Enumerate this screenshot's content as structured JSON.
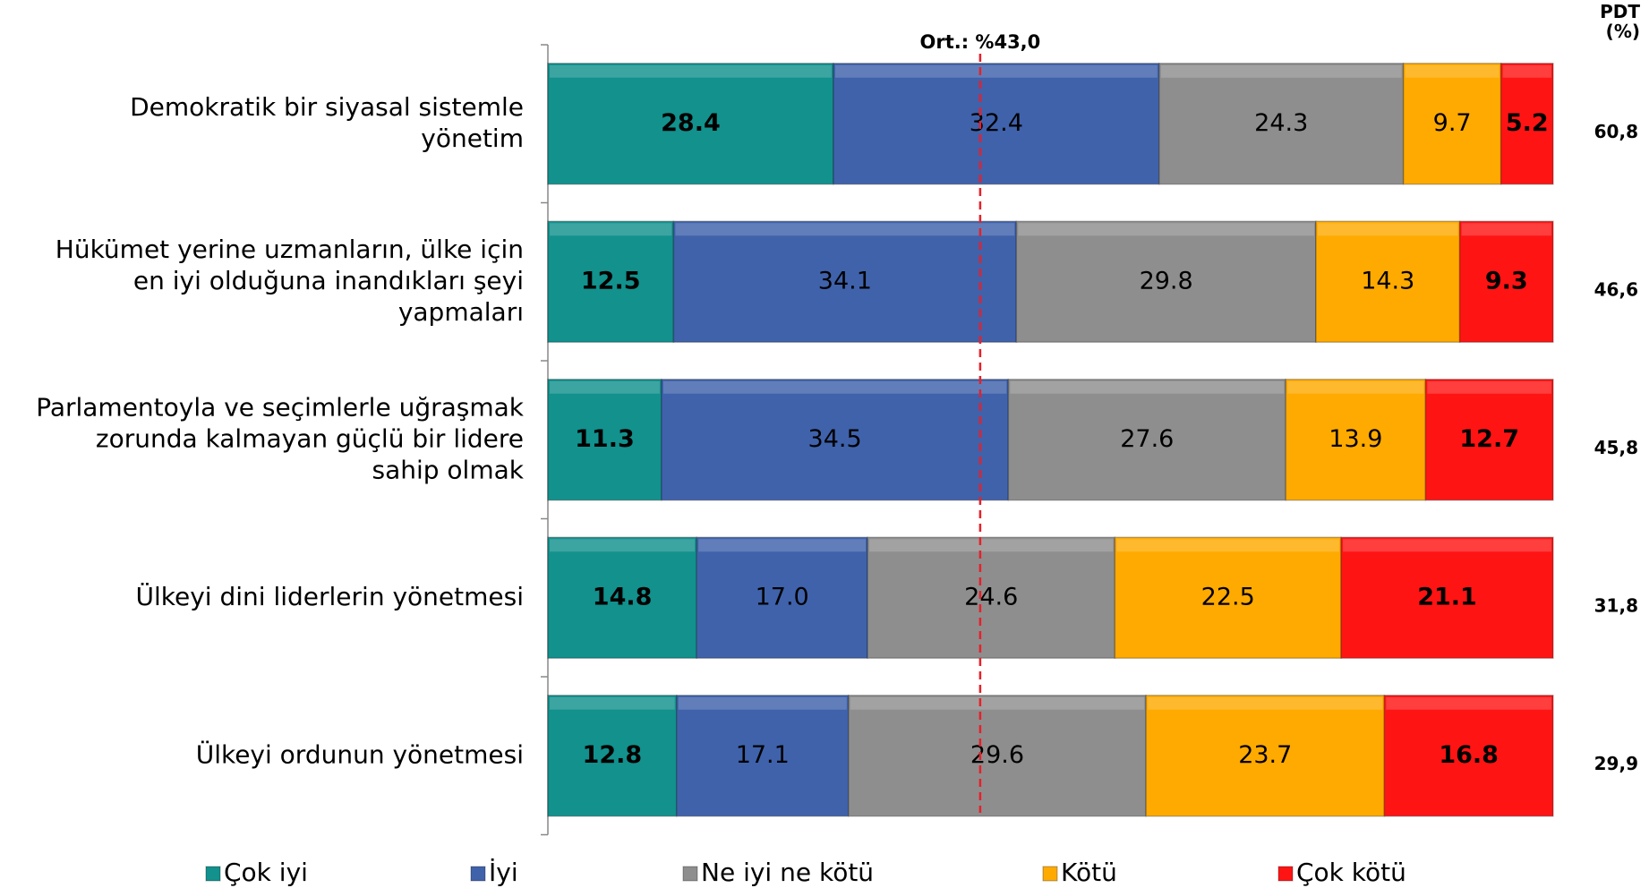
{
  "chart_data": {
    "type": "stacked_barh",
    "categories": [
      "Demokratik bir siyasal sistemle\nyönetim",
      "Hükümet yerine uzmanların, ülke için\nen iyi olduğuna inandıkları şeyi\nyapmaları",
      "Parlamentoyla ve seçimlerle uğraşmak\nzorunda kalmayan güçlü bir lidere\nsahip olmak",
      "Ülkeyi dini liderlerin yönetmesi",
      "Ülkeyi ordunun yönetmesi"
    ],
    "series": [
      {
        "name": "Çok iyi",
        "color": "#12918d",
        "values": [
          28.4,
          12.5,
          11.3,
          14.8,
          12.8
        ],
        "value_labels": [
          "28.4",
          "12.5",
          "11.3",
          "14.8",
          "12.8"
        ]
      },
      {
        "name": "İyi",
        "color": "#3f62ab",
        "values": [
          32.4,
          34.1,
          34.5,
          17.0,
          17.1
        ],
        "value_labels": [
          "32.4",
          "34.1",
          "34.5",
          "17.0",
          "17.1"
        ]
      },
      {
        "name": "Ne iyi ne kötü",
        "color": "#8e8e8e",
        "values": [
          24.3,
          29.8,
          27.6,
          24.6,
          29.6
        ],
        "value_labels": [
          "24.3",
          "29.8",
          "27.6",
          "24.6",
          "29.6"
        ]
      },
      {
        "name": "Kötü",
        "color": "#ffaa00",
        "values": [
          9.7,
          14.3,
          13.9,
          22.5,
          23.7
        ],
        "value_labels": [
          "9.7",
          "14.3",
          "13.9",
          "22.5",
          "23.7"
        ]
      },
      {
        "name": "Çok kötü",
        "color": "#ff1414",
        "values": [
          5.2,
          9.3,
          12.7,
          21.1,
          16.8
        ],
        "value_labels": [
          "5.2",
          "9.3",
          "12.7",
          "21.1",
          "16.8"
        ]
      }
    ],
    "xlim": [
      0,
      100
    ],
    "average_line": {
      "label": "Ort.: %43,0",
      "value": 43.0,
      "color": "#e8202a"
    },
    "pdt": {
      "title": "PDT\n(%)",
      "values": [
        60.8,
        46.6,
        45.8,
        31.8,
        29.9
      ],
      "value_labels": [
        "60,8",
        "46,6",
        "45,8",
        "31,8",
        "29,9"
      ]
    },
    "legend": "bottom"
  }
}
